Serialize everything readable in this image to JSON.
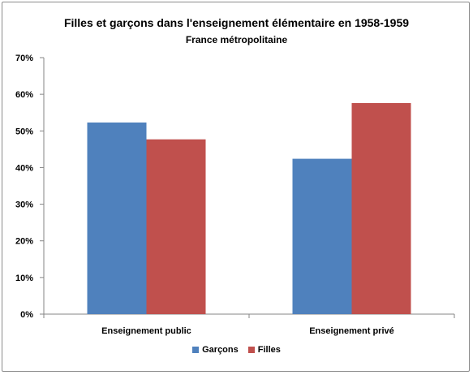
{
  "chart_data": {
    "type": "bar",
    "title": "Filles et garçons dans l'enseignement élémentaire en 1958-1959",
    "subtitle": "France métropolitaine",
    "categories": [
      "Enseignement public",
      "Enseignement privé"
    ],
    "series": [
      {
        "name": "Garçons",
        "values": [
          52.3,
          42.4
        ],
        "color": "#4f81bd"
      },
      {
        "name": "Filles",
        "values": [
          47.7,
          57.6
        ],
        "color": "#c0504d"
      }
    ],
    "ylim": [
      0,
      70
    ],
    "yticks": [
      "0%",
      "10%",
      "20%",
      "30%",
      "40%",
      "50%",
      "60%",
      "70%"
    ],
    "grid": false,
    "legend_position": "bottom"
  }
}
